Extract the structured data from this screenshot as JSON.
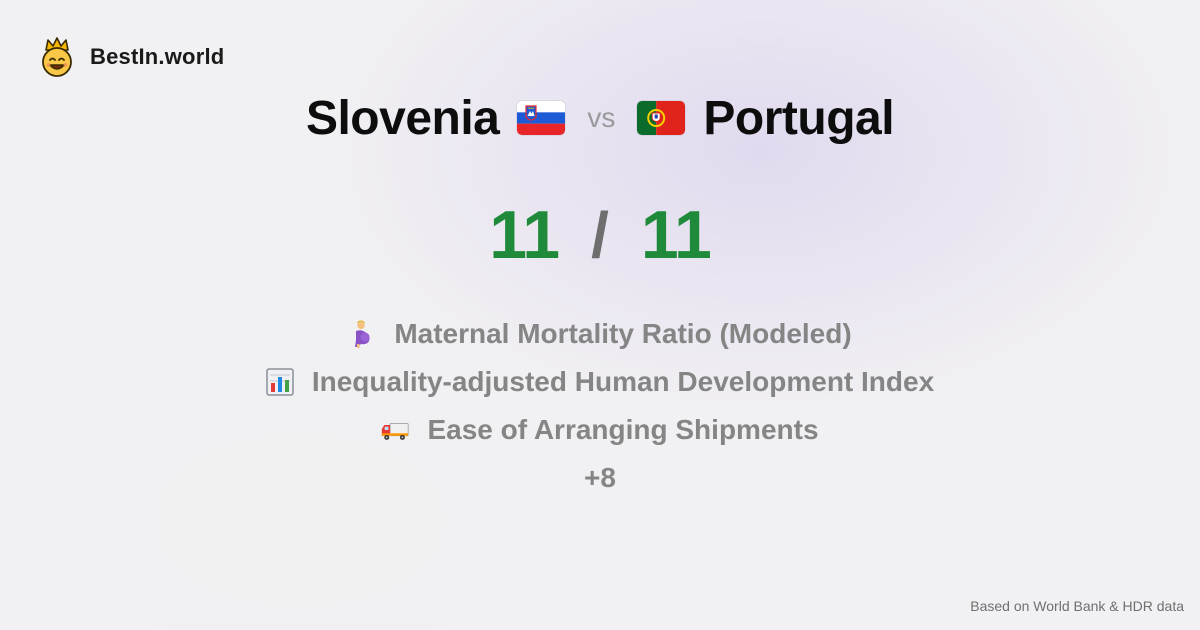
{
  "brand": {
    "name": "BestIn.world",
    "logo_icon": "crowned-smiley-icon"
  },
  "comparison": {
    "left_country": "Slovenia",
    "left_flag_icon": "slovenia-flag-icon",
    "vs_label": "vs",
    "right_country": "Portugal",
    "right_flag_icon": "portugal-flag-icon"
  },
  "score": {
    "left": "11",
    "separator": "/",
    "right": "11",
    "color": "#1f8a3a"
  },
  "metrics": [
    {
      "icon": "pregnant-woman-icon",
      "label": "Maternal Mortality Ratio (Modeled)"
    },
    {
      "icon": "bar-chart-icon",
      "label": "Inequality-adjusted Human Development Index"
    },
    {
      "icon": "delivery-truck-icon",
      "label": "Ease of Arranging Shipments"
    }
  ],
  "more_label": "+8",
  "footer": {
    "source": "Based on World Bank & HDR data"
  }
}
